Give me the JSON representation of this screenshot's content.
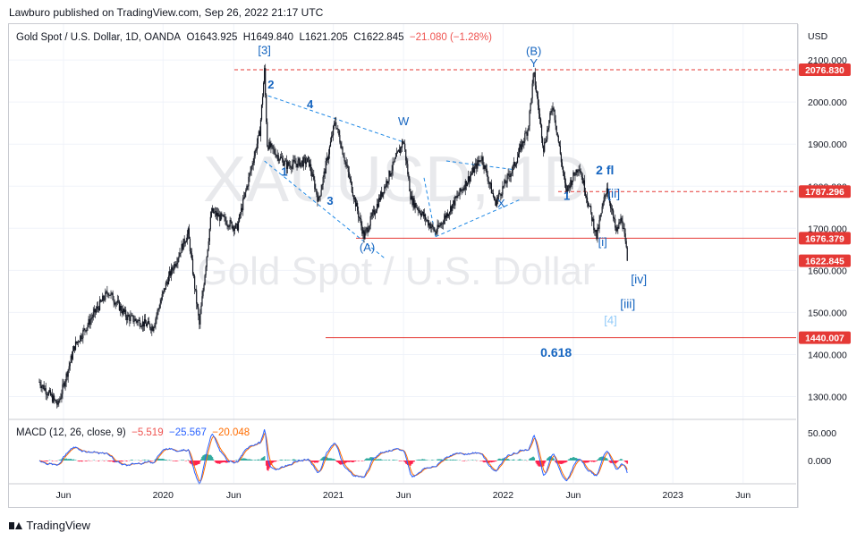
{
  "header": {
    "published_by": "Lawburo published on TradingView.com, Sep 26, 2022 21:17 UTC"
  },
  "legend": {
    "symbol": "Gold Spot / U.S. Dollar, 1D, OANDA",
    "open": "O1643.925",
    "high": "H1649.840",
    "low": "L1621.205",
    "close": "C1622.845",
    "change": "−21.080 (−1.28%)"
  },
  "macd": {
    "label": "MACD (12, 26, close, 9)",
    "v1": "−5.519",
    "v2": "−25.567",
    "v3": "−20.048",
    "ticks": [
      "50.000",
      "0.000"
    ]
  },
  "watermark": {
    "ticker": "XAUUSD, 1D",
    "name": "Gold Spot / U.S. Dollar"
  },
  "footer": {
    "brand": "TradingView"
  },
  "colors": {
    "up": "#26a69a",
    "down": "#ef5350",
    "wave": "#1e88e5",
    "macd": "#2962ff",
    "signal": "#ff6d00",
    "hline": "#e53935",
    "text": "#131722"
  },
  "chart_data": {
    "type": "candlestick",
    "title": "Gold Spot / U.S. Dollar, 1D, OANDA",
    "currency": "USD",
    "y_ticks": [
      "2100.000",
      "2000.000",
      "1900.000",
      "1800.000",
      "1700.000",
      "1600.000",
      "1500.000",
      "1400.000",
      "1300.000"
    ],
    "x_ticks": [
      "Jun",
      "2020",
      "Jun",
      "2021",
      "Jun",
      "2022",
      "Jun",
      "2023",
      "Jun"
    ],
    "price_labels": [
      {
        "value": "2076.830",
        "level": 2076.83
      },
      {
        "value": "1787.296",
        "level": 1787.296
      },
      {
        "value": "1676.379",
        "level": 1676.379
      },
      {
        "value": "1622.845",
        "level": 1622.845
      },
      {
        "value": "1440.007",
        "level": 1440.007
      }
    ],
    "path": [
      [
        "2019-04-10",
        1335
      ],
      [
        "2019-05-20",
        1280
      ],
      [
        "2019-06-25",
        1420
      ],
      [
        "2019-08-10",
        1505
      ],
      [
        "2019-09-05",
        1550
      ],
      [
        "2019-10-15",
        1490
      ],
      [
        "2019-12-10",
        1465
      ],
      [
        "2020-01-08",
        1570
      ],
      [
        "2020-02-24",
        1690
      ],
      [
        "2020-03-19",
        1470
      ],
      [
        "2020-04-14",
        1740
      ],
      [
        "2020-06-08",
        1700
      ],
      [
        "2020-07-27",
        1930
      ],
      [
        "2020-08-06",
        2075
      ],
      [
        "2020-08-12",
        1900
      ],
      [
        "2020-09-23",
        1850
      ],
      [
        "2020-11-09",
        1860
      ],
      [
        "2020-11-30",
        1765
      ],
      [
        "2021-01-05",
        1955
      ],
      [
        "2021-03-08",
        1680
      ],
      [
        "2021-06-01",
        1910
      ],
      [
        "2021-06-17",
        1770
      ],
      [
        "2021-08-09",
        1690
      ],
      [
        "2021-11-16",
        1870
      ],
      [
        "2021-12-15",
        1760
      ],
      [
        "2022-01-25",
        1850
      ],
      [
        "2022-02-24",
        1940
      ],
      [
        "2022-03-08",
        2070
      ],
      [
        "2022-03-29",
        1890
      ],
      [
        "2022-04-18",
        1995
      ],
      [
        "2022-05-16",
        1787
      ],
      [
        "2022-06-13",
        1850
      ],
      [
        "2022-07-21",
        1680
      ],
      [
        "2022-08-12",
        1800
      ],
      [
        "2022-09-01",
        1690
      ],
      [
        "2022-09-13",
        1725
      ],
      [
        "2022-09-26",
        1622.845
      ]
    ],
    "wave_labels": [
      {
        "text": "[3]",
        "date": "2020-08-06",
        "price": 2114
      },
      {
        "text": "2",
        "date": "2020-08-20",
        "price": 2032
      },
      {
        "text": "4",
        "date": "2020-11-12",
        "price": 1985
      },
      {
        "text": "1",
        "date": "2020-09-18",
        "price": 1825
      },
      {
        "text": "3",
        "date": "2020-12-25",
        "price": 1756
      },
      {
        "text": "(A)",
        "date": "2021-03-15",
        "price": 1645
      },
      {
        "text": "W",
        "date": "2021-06-01",
        "price": 1945
      },
      {
        "text": "X",
        "date": "2021-12-28",
        "price": 1750
      },
      {
        "text": "(B)",
        "date": "2022-03-08",
        "price": 2112
      },
      {
        "text": "Y",
        "date": "2022-03-08",
        "price": 2083
      },
      {
        "text": "1",
        "date": "2022-05-18",
        "price": 1768
      },
      {
        "text": "2 fl",
        "date": "2022-08-08",
        "price": 1828
      },
      {
        "text": "[ii]",
        "date": "2022-08-27",
        "price": 1773
      },
      {
        "text": "[i]",
        "date": "2022-08-03",
        "price": 1658
      },
      {
        "text": "[iv]",
        "date": "2022-10-20",
        "price": 1569
      },
      {
        "text": "[iii]",
        "date": "2022-09-26",
        "price": 1510
      },
      {
        "text": "[4]",
        "date": "2022-08-20",
        "price": 1472
      },
      {
        "text": "0.618",
        "date": "2022-04-25",
        "price": 1395
      }
    ]
  }
}
